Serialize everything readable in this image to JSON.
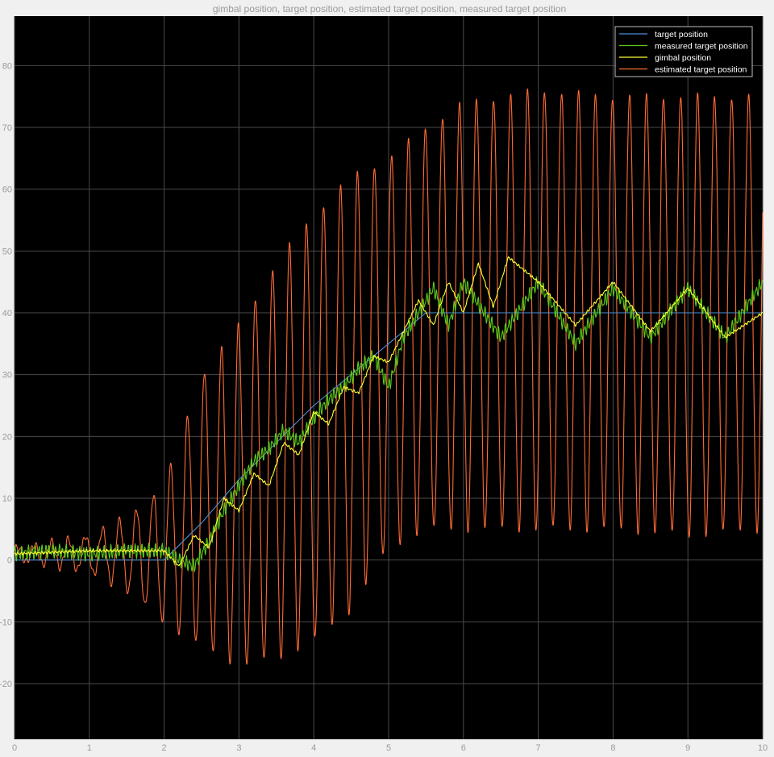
{
  "window": {
    "title": "gimbal position, target position, estimated target position, measured target position"
  },
  "chart_data": {
    "type": "line",
    "title": "gimbal position, target position, estimated target position, measured target position",
    "xlabel": "",
    "ylabel": "",
    "xlim": [
      0,
      10
    ],
    "ylim": [
      -29,
      88
    ],
    "x_ticks": [
      0,
      1,
      2,
      3,
      4,
      5,
      6,
      7,
      8,
      9,
      10
    ],
    "y_ticks": [
      -20,
      -10,
      0,
      10,
      20,
      30,
      40,
      50,
      60,
      70,
      80
    ],
    "grid": true,
    "legend_position": "top-right",
    "background": "#000000",
    "series": [
      {
        "name": "target position",
        "color": "#4a90d9",
        "x": [
          0,
          2.0,
          2.5,
          3.0,
          3.5,
          4.0,
          4.5,
          5.0,
          5.5,
          6.0,
          7.0,
          8.0,
          9.0,
          10.0
        ],
        "y": [
          0,
          0,
          6,
          13,
          19,
          25,
          30,
          35,
          40,
          40,
          40,
          40,
          40,
          40
        ]
      },
      {
        "name": "measured target position",
        "color": "#5cc91a",
        "x": [
          0,
          0.5,
          1.0,
          1.5,
          2.0,
          2.2,
          2.4,
          2.6,
          2.8,
          3.0,
          3.2,
          3.4,
          3.6,
          3.8,
          4.0,
          4.2,
          4.4,
          4.6,
          4.8,
          5.0,
          5.2,
          5.4,
          5.6,
          5.8,
          6.0,
          6.5,
          7.0,
          7.5,
          8.0,
          8.5,
          9.0,
          9.5,
          10.0
        ],
        "y": [
          1,
          1.5,
          1,
          1.5,
          1.5,
          0,
          -1,
          3,
          8,
          12,
          16,
          18,
          21,
          19,
          23,
          26,
          28,
          31,
          33,
          28,
          36,
          40,
          44,
          38,
          45,
          36,
          45,
          35,
          44,
          36,
          44,
          36,
          45
        ]
      },
      {
        "name": "gimbal position",
        "color": "#ffff33",
        "x": [
          0,
          1.0,
          2.0,
          2.2,
          2.4,
          2.6,
          2.8,
          3.0,
          3.2,
          3.4,
          3.6,
          3.8,
          4.0,
          4.2,
          4.4,
          4.6,
          4.8,
          5.0,
          5.2,
          5.4,
          5.6,
          5.8,
          6.0,
          6.2,
          6.4,
          6.6,
          7.0,
          7.5,
          8.0,
          8.5,
          9.0,
          9.5,
          10.0
        ],
        "y": [
          1,
          1.5,
          1.5,
          -1,
          4,
          2,
          10,
          8,
          14,
          12,
          19,
          17,
          24,
          22,
          28,
          27,
          33,
          32,
          37,
          42,
          38,
          45,
          40,
          48,
          41,
          49,
          45,
          38,
          45,
          37,
          44,
          36,
          40
        ]
      },
      {
        "name": "estimated target position",
        "color": "#ff6b35",
        "x": [
          0,
          1.0,
          1.5,
          2.0,
          2.5,
          3.0,
          3.5,
          4.0,
          4.5,
          5.0,
          5.5,
          6.0,
          6.5,
          7.0,
          8.0,
          9.0,
          10.0
        ],
        "y_upper": [
          2,
          4,
          7,
          12,
          30,
          38,
          48,
          56,
          62,
          65,
          70,
          74,
          75,
          76,
          75,
          75,
          75
        ],
        "y_lower": [
          0,
          -2,
          -5,
          -10,
          -14,
          -17,
          -16,
          -13,
          -8,
          2,
          5,
          5,
          5,
          5,
          5,
          4,
          5
        ],
        "y_center": [
          1,
          1,
          1,
          1,
          8,
          11,
          16,
          21,
          27,
          33,
          37,
          40,
          40,
          40,
          40,
          40,
          40
        ]
      }
    ]
  }
}
